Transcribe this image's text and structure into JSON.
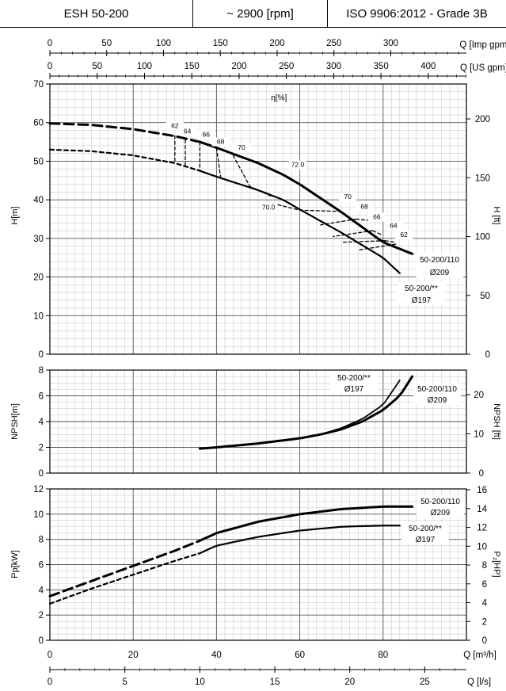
{
  "header": {
    "model": "ESH 50-200",
    "speed": "~ 2900 [rpm]",
    "standard": "ISO 9906:2012 - Grade 3B"
  },
  "chart_data": [
    {
      "type": "line",
      "panel": "head",
      "xlabel": "Q [m³/h]",
      "xlim": [
        0,
        100
      ],
      "ylabel": "H[m]",
      "ylim": [
        0,
        70
      ],
      "y2label": "H [ft]",
      "y2ticks": [
        0,
        50,
        100,
        150,
        200
      ],
      "top_axes": [
        {
          "label": "Q [Imp gpm]",
          "ticks": [
            0,
            50,
            100,
            150,
            200,
            250,
            300
          ]
        },
        {
          "label": "Q [US gpm]",
          "ticks": [
            0,
            50,
            100,
            150,
            200,
            250,
            300,
            350,
            400
          ]
        }
      ],
      "efficiency_label": "η[%]",
      "series": [
        {
          "name": "50-200/110",
          "name2": "Ø209",
          "style": "solid+dashed",
          "x": [
            0,
            10,
            20,
            30,
            36,
            40,
            50,
            56,
            60,
            70,
            80,
            87
          ],
          "y": [
            59.8,
            59.4,
            58.3,
            56.5,
            55,
            53.5,
            49.5,
            46.5,
            44,
            36.8,
            29,
            26
          ]
        },
        {
          "name": "50-200/**",
          "name2": "Ø197",
          "style": "solid+dashed",
          "x": [
            0,
            10,
            20,
            30,
            36,
            40,
            50,
            56,
            60,
            70,
            80,
            84
          ],
          "y": [
            53,
            52.6,
            51.5,
            49.5,
            47.5,
            46,
            42.5,
            40,
            37.5,
            31.5,
            25,
            21
          ]
        }
      ],
      "efficiency_labels": [
        "62",
        "64",
        "66",
        "68",
        "70",
        "72.0",
        "70.0",
        "70",
        "68",
        "66",
        "64",
        "62"
      ]
    },
    {
      "type": "line",
      "panel": "npsh",
      "ylabel": "NPSH[m]",
      "ylim": [
        0,
        8
      ],
      "y2label": "NPSH [ft]",
      "y2ticks": [
        0,
        10,
        20
      ],
      "series": [
        {
          "name": "50-200/**",
          "name2": "Ø197",
          "x": [
            36,
            40,
            50,
            60,
            65,
            70,
            75,
            80,
            84
          ],
          "y": [
            1.9,
            2.0,
            2.3,
            2.7,
            3.0,
            3.5,
            4.2,
            5.3,
            7.2
          ]
        },
        {
          "name": "50-200/110",
          "name2": "Ø209",
          "x": [
            36,
            40,
            50,
            60,
            65,
            70,
            75,
            80,
            84,
            87
          ],
          "y": [
            1.9,
            2.0,
            2.3,
            2.7,
            3.0,
            3.4,
            4.0,
            4.9,
            6.0,
            7.5
          ]
        }
      ]
    },
    {
      "type": "line",
      "panel": "power",
      "ylabel": "Pp[kW]",
      "ylim": [
        0,
        12
      ],
      "y2label": "P₂[HP]",
      "y2ticks": [
        0,
        2,
        4,
        6,
        8,
        10,
        12,
        14,
        16
      ],
      "xlabel": "Q [m³/h]",
      "xticks": [
        0,
        20,
        40,
        60,
        80
      ],
      "x2label": "Q [l/s]",
      "x2ticks": [
        0,
        5,
        10,
        15,
        20,
        25
      ],
      "series": [
        {
          "name": "50-200/110",
          "name2": "Ø209",
          "style": "solid+dashed",
          "x": [
            0,
            10,
            20,
            30,
            36,
            40,
            50,
            60,
            70,
            80,
            87
          ],
          "y": [
            3.5,
            4.7,
            5.9,
            7.1,
            7.9,
            8.5,
            9.4,
            10.0,
            10.4,
            10.6,
            10.6
          ]
        },
        {
          "name": "50-200/**",
          "name2": "Ø197",
          "style": "solid+dashed",
          "x": [
            0,
            10,
            20,
            30,
            36,
            40,
            50,
            60,
            70,
            80,
            84
          ],
          "y": [
            2.9,
            4.1,
            5.2,
            6.3,
            6.9,
            7.5,
            8.2,
            8.7,
            9.0,
            9.1,
            9.1
          ]
        }
      ]
    }
  ]
}
